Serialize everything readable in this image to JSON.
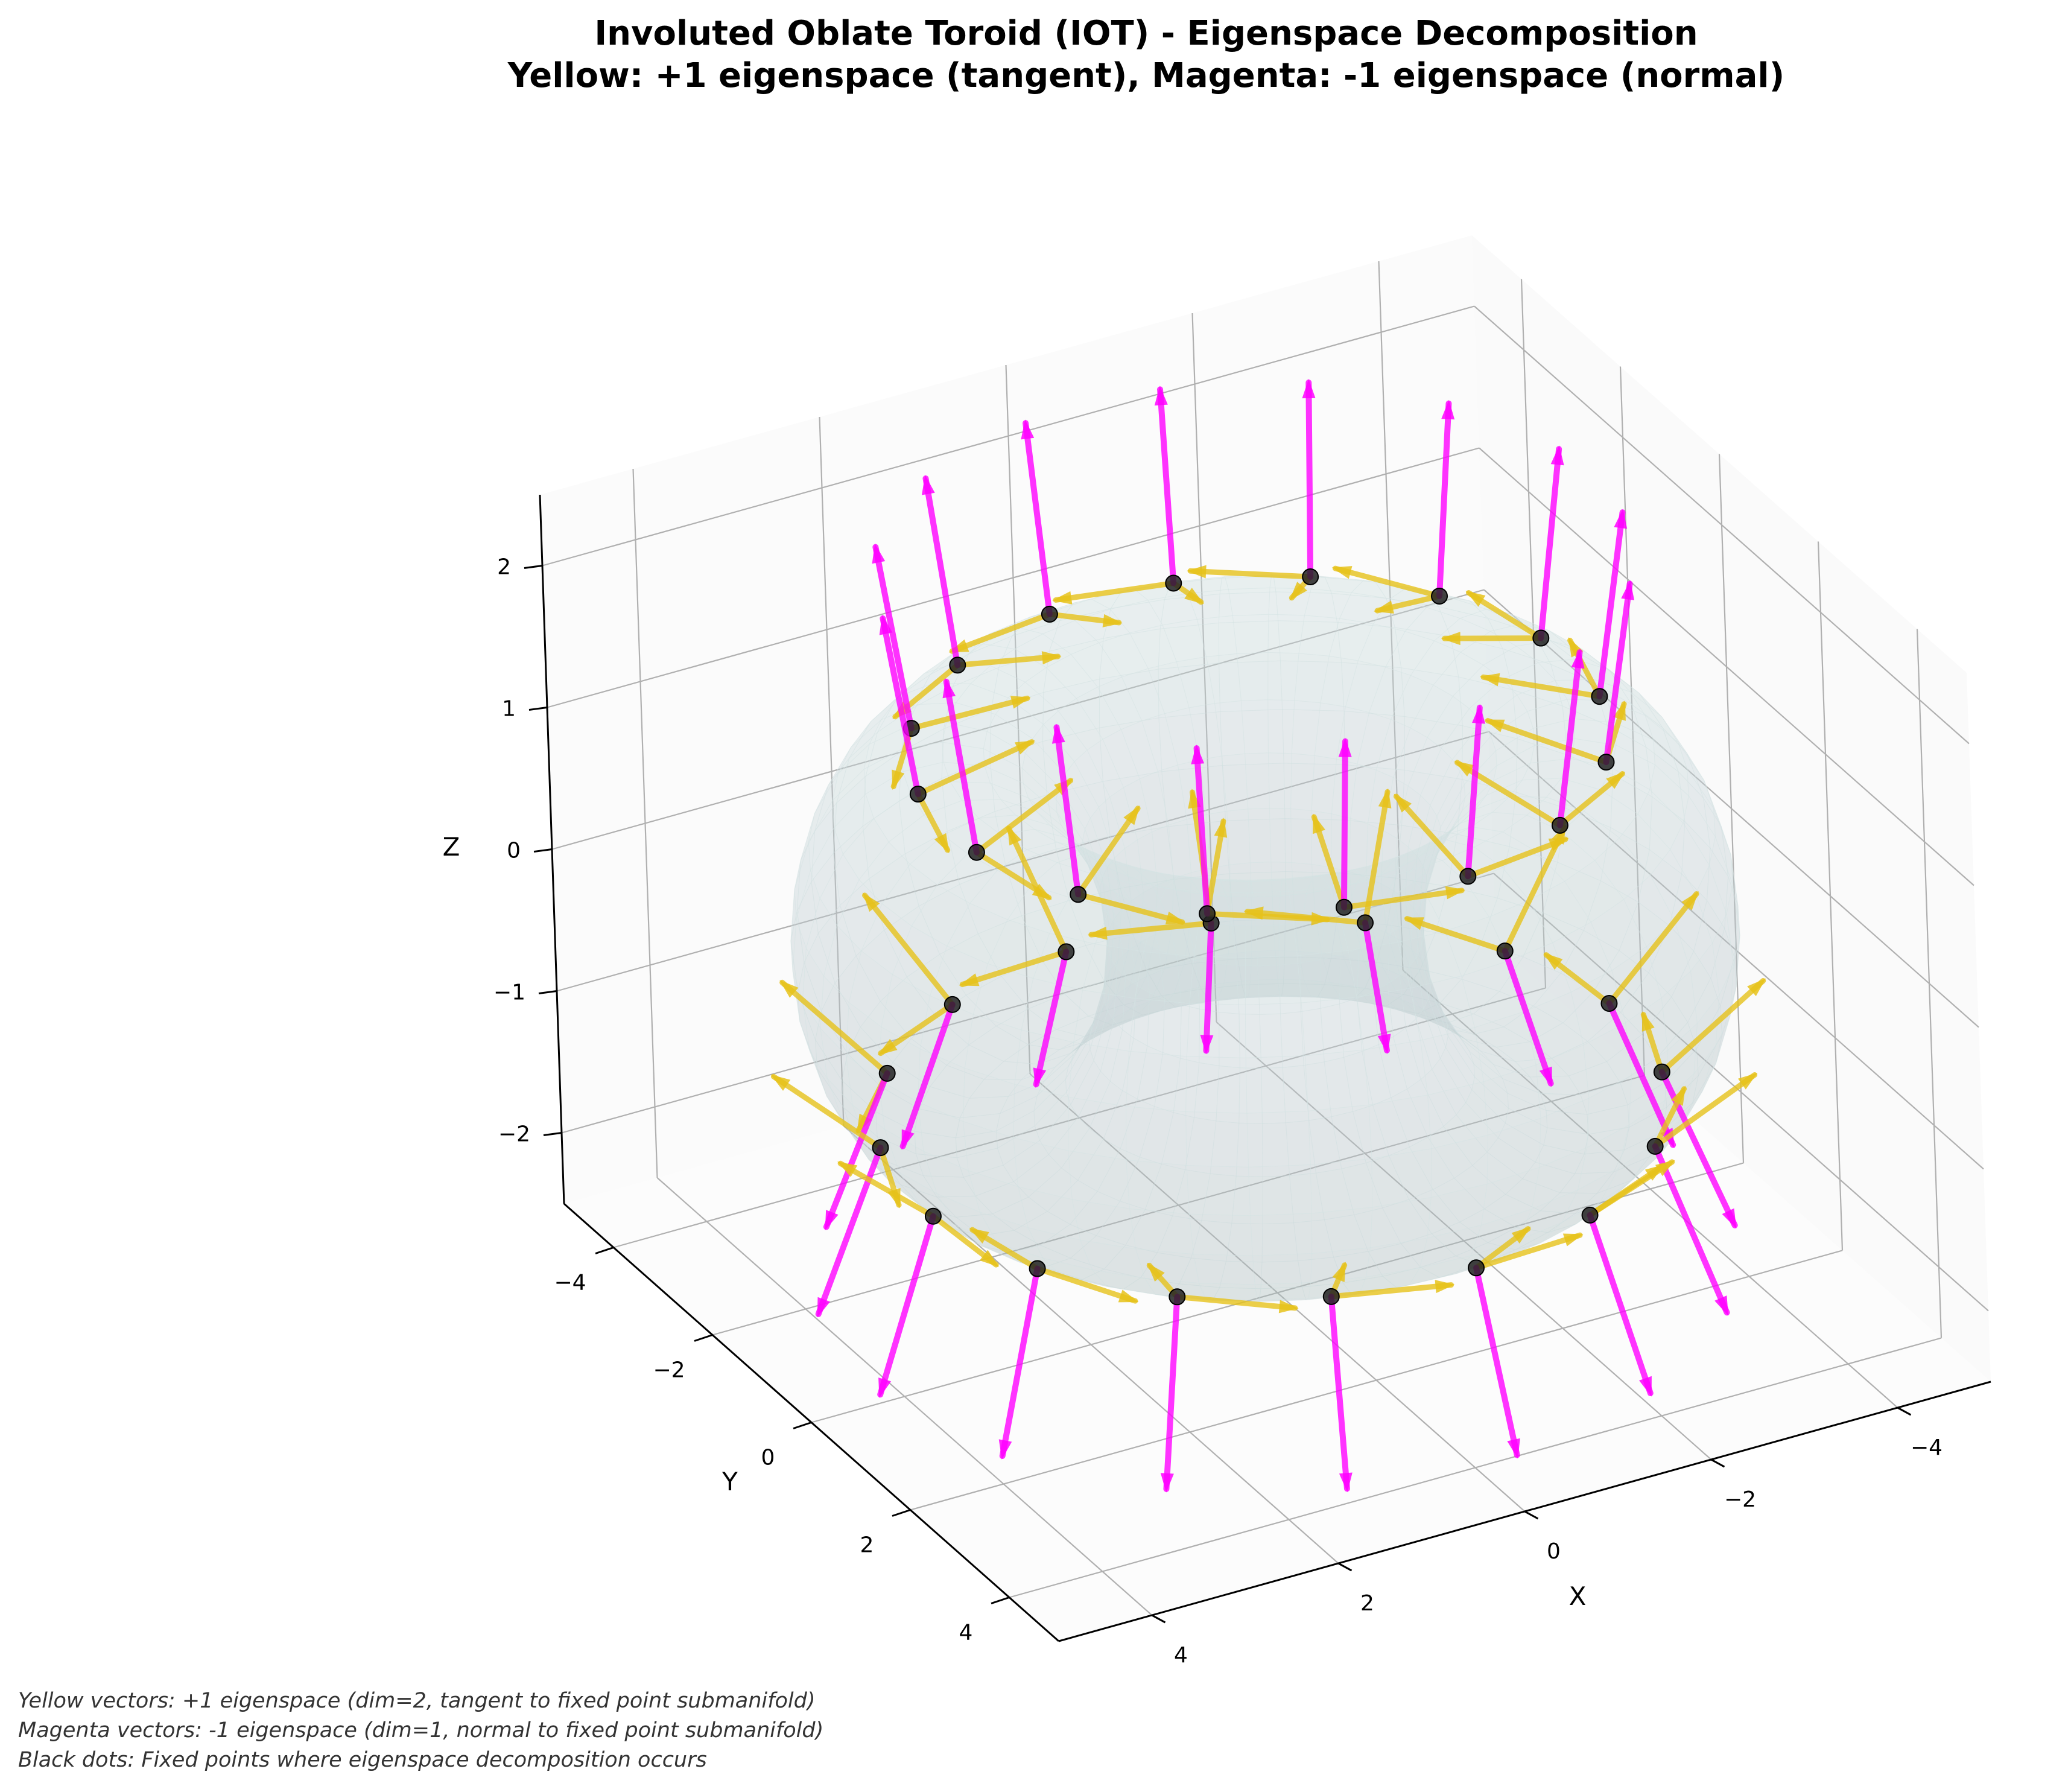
{
  "chart_data": {
    "type": "3d-surface-quiver",
    "title": "Involuted Oblate Toroid (IOT) - Eigenspace Decomposition",
    "subtitle": "Yellow: +1 eigenspace (tangent), Magenta: -1 eigenspace (normal)",
    "xlabel": "X",
    "ylabel": "Y",
    "zlabel": "Z",
    "x_ticks": [
      "4",
      "2",
      "0",
      "−2",
      "−4"
    ],
    "y_ticks": [
      "−4",
      "−2",
      "0",
      "2",
      "4"
    ],
    "z_ticks": [
      "2",
      "1",
      "0",
      "−1",
      "−2"
    ],
    "xlim": [
      -5,
      5
    ],
    "ylim": [
      -5,
      5
    ],
    "zlim": [
      -2.5,
      2.5
    ],
    "grid": true,
    "surface": {
      "shape": "torus",
      "major_radius": 3,
      "minor_radius": 1.5,
      "color": "#c6d9dc"
    },
    "series": [
      {
        "name": "Yellow vectors",
        "color": "#e6c21a"
      },
      {
        "name": "Magenta vectors",
        "color": "#ff00ff"
      },
      {
        "name": "Black dots",
        "color": "#222222"
      }
    ],
    "fixed_points_per_ring": 16,
    "rings": [
      {
        "theta_offset": 0.15,
        "phi": 1.35
      },
      {
        "theta_offset": 0.45,
        "phi": -1.05
      }
    ]
  },
  "footnotes": [
    "Yellow vectors: +1 eigenspace (dim=2, tangent to fixed point submanifold)",
    "Magenta vectors: -1 eigenspace (dim=1, normal to fixed point submanifold)",
    "Black dots: Fixed points where eigenspace decomposition occurs"
  ]
}
